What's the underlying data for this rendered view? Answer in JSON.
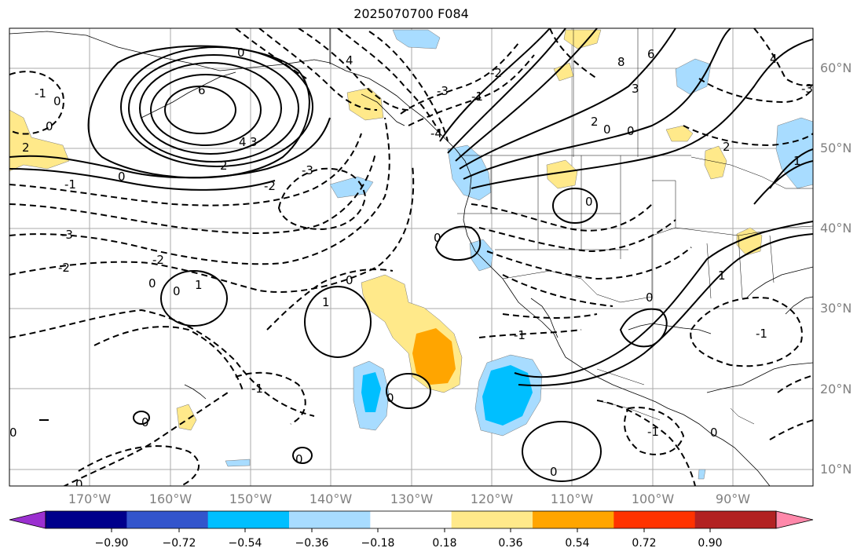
{
  "title": "2025070700 F084",
  "lat_labels": [
    "60°N",
    "50°N",
    "40°N",
    "30°N",
    "20°N",
    "10°N"
  ],
  "lon_labels": [
    "170°W",
    "160°W",
    "150°W",
    "140°W",
    "130°W",
    "120°W",
    "110°W",
    "100°W",
    "90°W"
  ],
  "colorbar": {
    "ticks": [
      "−0.90",
      "−0.72",
      "−0.54",
      "−0.36",
      "−0.18",
      "0.18",
      "0.36",
      "0.54",
      "0.72",
      "0.90"
    ],
    "colors": [
      "#9b30d0",
      "#00008b",
      "#3355cc",
      "#00bfff",
      "#a8dcff",
      "#ffffff",
      "#ffe98a",
      "#ffa500",
      "#ff3300",
      "#b22222",
      "#ff88aa"
    ]
  },
  "contour_labels": [
    "0",
    "-1",
    "0",
    "-2",
    "-3",
    "6",
    "4",
    "3",
    "2",
    "0",
    "-1",
    "-2",
    "-3",
    "-4",
    "0",
    "-1",
    "1",
    "0",
    "-1",
    "0",
    "0",
    "-1",
    "-2",
    "-3",
    "4",
    "6",
    "8",
    "-1",
    "-3",
    "-2",
    "-3",
    "2",
    "0",
    "0",
    "1",
    "0",
    "-1",
    "1",
    "0",
    "-1",
    "-2",
    "-3",
    "-4",
    "-1",
    "0",
    "-1",
    "0"
  ]
}
